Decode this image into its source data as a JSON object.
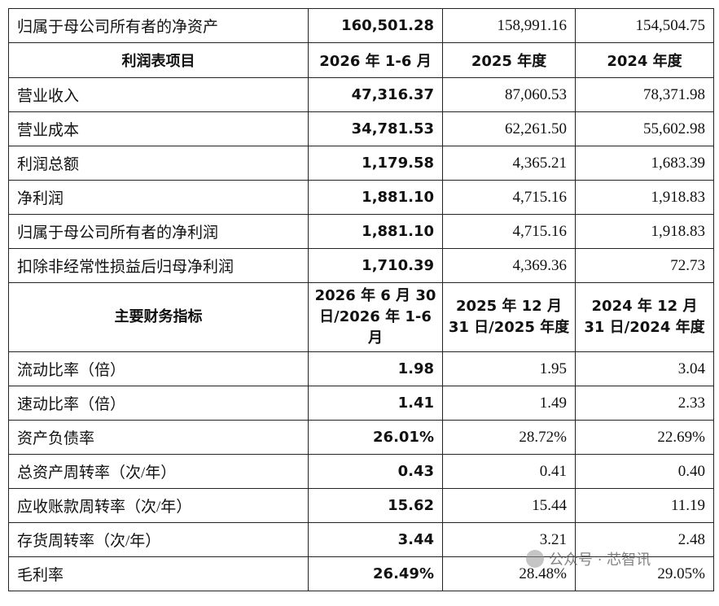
{
  "table": {
    "top_rows": [
      [
        "归属于母公司所有者的净资产",
        "160,501.28",
        "158,991.16",
        "154,504.75"
      ]
    ],
    "sections": [
      {
        "header": [
          "利润表项目",
          "2026 年 1-6 月",
          "2025 年度",
          "2024 年度"
        ],
        "rows": [
          [
            "营业收入",
            "47,316.37",
            "87,060.53",
            "78,371.98"
          ],
          [
            "营业成本",
            "34,781.53",
            "62,261.50",
            "55,602.98"
          ],
          [
            "利润总额",
            "1,179.58",
            "4,365.21",
            "1,683.39"
          ],
          [
            "净利润",
            "1,881.10",
            "4,715.16",
            "1,918.83"
          ],
          [
            "归属于母公司所有者的净利润",
            "1,881.10",
            "4,715.16",
            "1,918.83"
          ],
          [
            "扣除非经常性损益后归母净利润",
            "1,710.39",
            "4,369.36",
            "72.73"
          ]
        ]
      },
      {
        "header": [
          "主要财务指标",
          "2026 年 6 月 30 日/2026 年 1-6 月",
          "2025 年 12 月 31 日/2025 年度",
          "2024 年 12 月 31 日/2024 年度"
        ],
        "rows": [
          [
            "流动比率（倍）",
            "1.98",
            "1.95",
            "3.04"
          ],
          [
            "速动比率（倍）",
            "1.41",
            "1.49",
            "2.33"
          ],
          [
            "资产负债率",
            "26.01%",
            "28.72%",
            "22.69%"
          ],
          [
            "总资产周转率（次/年）",
            "0.43",
            "0.41",
            "0.40"
          ],
          [
            "应收账款周转率（次/年）",
            "15.62",
            "15.44",
            "11.19"
          ],
          [
            "存货周转率（次/年）",
            "3.44",
            "3.21",
            "2.48"
          ],
          [
            "毛利率",
            "26.49%",
            "28.48%",
            "29.05%"
          ]
        ]
      }
    ]
  },
  "watermark": "公众号 · 芯智讯"
}
